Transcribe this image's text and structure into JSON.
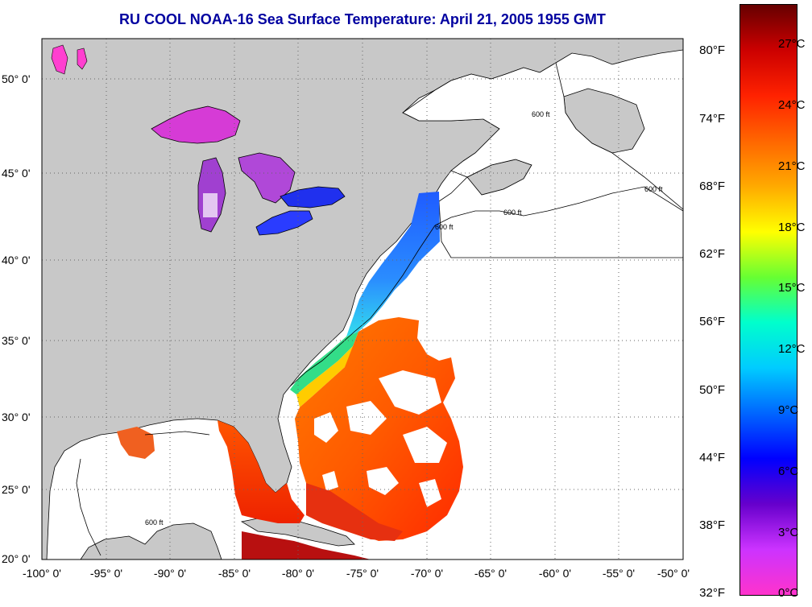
{
  "title": "RU COOL  NOAA-16  Sea Surface Temperature:  April 21, 2005 1955 GMT",
  "latitude_labels": [
    "50° 0'",
    "45° 0'",
    "40° 0'",
    "35° 0'",
    "30° 0'",
    "25° 0'",
    "20° 0'"
  ],
  "longitude_labels": [
    "-100° 0'",
    "-95° 0'",
    "-90° 0'",
    "-85° 0'",
    "-80° 0'",
    "-75° 0'",
    "-70° 0'",
    "-65° 0'",
    "-60° 0'",
    "-55° 0'",
    "-50° 0'"
  ],
  "contour_label": "600 ft",
  "colorbar": {
    "fahrenheit_labels": [
      "80°F",
      "74°F",
      "68°F",
      "62°F",
      "56°F",
      "50°F",
      "44°F",
      "38°F",
      "32°F"
    ],
    "celsius_labels": [
      "27°C",
      "24°C",
      "21°C",
      "18°C",
      "15°C",
      "12°C",
      "9°C",
      "6°C",
      "3°C",
      "0°C"
    ],
    "colors": [
      "#ff33cc",
      "#cc33ff",
      "#6600cc",
      "#0000ff",
      "#0066ff",
      "#00ccff",
      "#00ffcc",
      "#66ff33",
      "#ffff00",
      "#ffaa00",
      "#ff6600",
      "#ff2200",
      "#cc0000",
      "#660000"
    ]
  },
  "colors": {
    "land": "#c8c8c8",
    "no_data": "#ffffff",
    "title": "#0000a0",
    "grid": "#666666"
  }
}
